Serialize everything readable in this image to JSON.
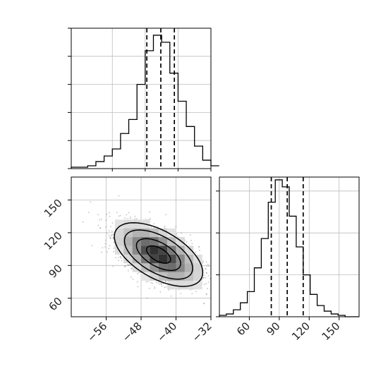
{
  "chart_data": [
    {
      "panel": "top-left",
      "type": "histogram",
      "parameter": "x",
      "bin_edges": [
        -66,
        -64,
        -62,
        -60,
        -58,
        -56,
        -54,
        -52,
        -50,
        -48,
        -46,
        -44,
        -42,
        -40,
        -38,
        -36,
        -34,
        -32,
        -30
      ],
      "counts": [
        1,
        1,
        2,
        5,
        9,
        14,
        25,
        35,
        60,
        84,
        95,
        90,
        68,
        48,
        30,
        16,
        6,
        2
      ],
      "quantiles": [
        -47.6,
        -44.2,
        -40.9
      ],
      "xlim": [
        -66,
        -32
      ],
      "ylim": [
        0,
        100
      ],
      "grid": true
    },
    {
      "panel": "bottom-left",
      "type": "heatmap",
      "description_of_axes": "x vs y joint density",
      "x_ticks": [
        {
          "value": -56,
          "label": "−56"
        },
        {
          "value": -48,
          "label": "−48"
        },
        {
          "value": -40,
          "label": "−40"
        },
        {
          "value": -32,
          "label": "−32"
        }
      ],
      "y_ticks": [
        {
          "value": 60,
          "label": "60"
        },
        {
          "value": 90,
          "label": "90"
        },
        {
          "value": 120,
          "label": "120"
        },
        {
          "value": 150,
          "label": "150"
        }
      ],
      "xlim": [
        -64,
        -32
      ],
      "ylim": [
        43,
        171
      ],
      "density_peak": {
        "x": -44,
        "y": 100
      },
      "grid": true
    },
    {
      "panel": "bottom-right",
      "type": "histogram",
      "parameter": "y",
      "bin_edges": [
        30,
        37,
        44,
        51,
        58,
        65,
        72,
        79,
        86,
        93,
        100,
        107,
        114,
        121,
        128,
        135,
        142,
        149,
        156,
        163,
        170
      ],
      "counts": [
        1,
        2,
        5,
        10,
        18,
        35,
        56,
        82,
        98,
        93,
        72,
        50,
        30,
        16,
        8,
        4,
        2,
        1,
        0,
        0
      ],
      "quantiles": [
        82,
        98,
        114
      ],
      "x_ticks": [
        {
          "value": 60,
          "label": "60"
        },
        {
          "value": 90,
          "label": "90"
        },
        {
          "value": 120,
          "label": "120"
        },
        {
          "value": 150,
          "label": "150"
        }
      ],
      "xlim": [
        30,
        170
      ],
      "ylim": [
        0,
        100
      ],
      "grid": true
    }
  ]
}
